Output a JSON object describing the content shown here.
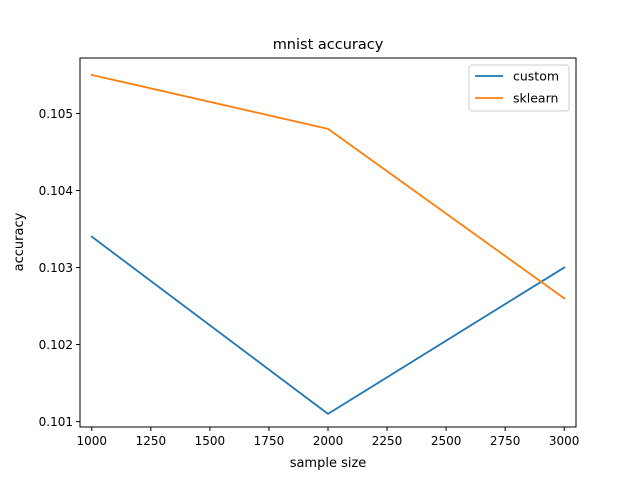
{
  "chart_data": {
    "type": "line",
    "title": "mnist accuracy",
    "xlabel": "sample size",
    "ylabel": "accuracy",
    "x": [
      1000,
      2000,
      3000
    ],
    "xlim": [
      950,
      3050
    ],
    "ylim": [
      0.10093,
      0.10572
    ],
    "xticks": [
      1000,
      1250,
      1500,
      1750,
      2000,
      2250,
      2500,
      2750,
      3000
    ],
    "yticks": [
      0.101,
      0.102,
      0.103,
      0.104,
      0.105
    ],
    "xtick_labels": [
      "1000",
      "1250",
      "1500",
      "1750",
      "2000",
      "2250",
      "2500",
      "2750",
      "3000"
    ],
    "ytick_labels": [
      "0.101",
      "0.102",
      "0.103",
      "0.104",
      "0.105"
    ],
    "grid": false,
    "legend_position": "top-right",
    "series": [
      {
        "name": "custom",
        "color": "#1f77b4",
        "values": [
          0.1034,
          0.1011,
          0.103
        ]
      },
      {
        "name": "sklearn",
        "color": "#ff7f0e",
        "values": [
          0.1055,
          0.1048,
          0.1026
        ]
      }
    ]
  }
}
